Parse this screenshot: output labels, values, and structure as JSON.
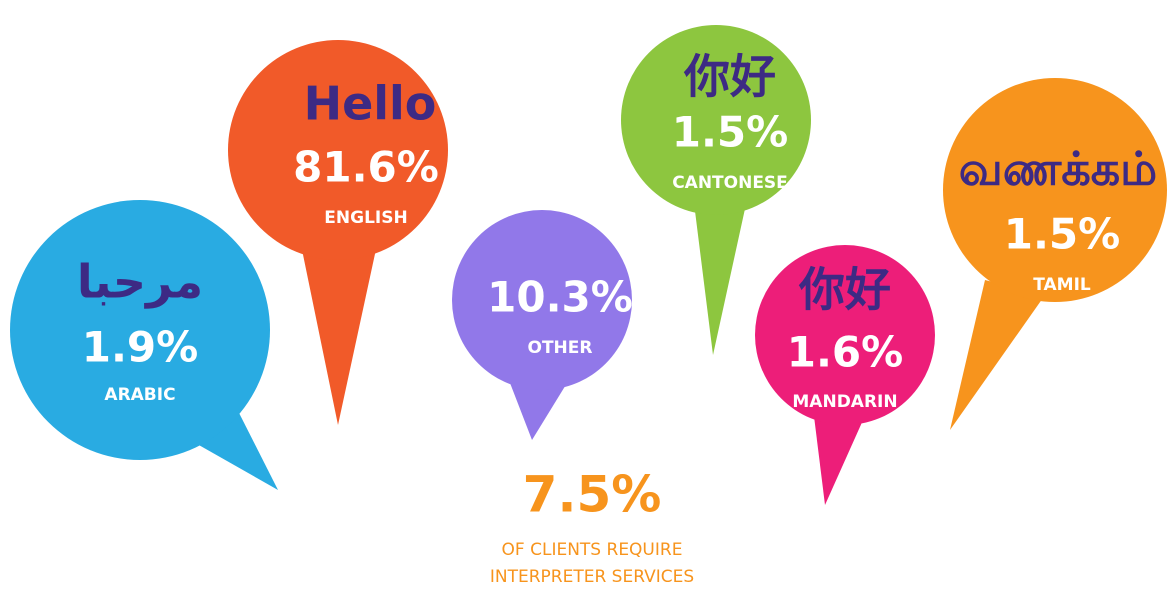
{
  "bubbles": [
    {
      "greeting": "مرحبا",
      "value": "1.9%",
      "language": "ARABIC"
    },
    {
      "greeting": "Hello",
      "value": "81.6%",
      "language": "ENGLISH"
    },
    {
      "value": "10.3%",
      "language": "OTHER"
    },
    {
      "greeting": "你好",
      "value": "1.5%",
      "language": "CANTONESE"
    },
    {
      "greeting": "你好",
      "value": "1.6%",
      "language": "MANDARIN"
    },
    {
      "greeting": "வணக்கம்",
      "value": "1.5%",
      "language": "TAMIL"
    }
  ],
  "footer": {
    "value": "7.5%",
    "line1": "OF CLIENTS REQUIRE",
    "line2": "INTERPRETER SERVICES"
  }
}
